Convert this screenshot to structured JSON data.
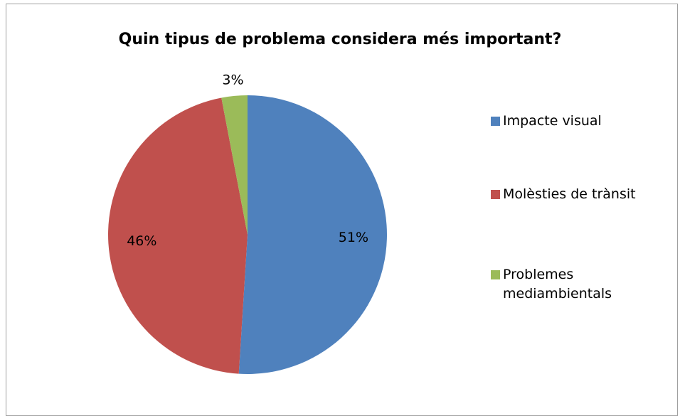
{
  "chart_data": {
    "type": "pie",
    "title": "Quin tipus de problema considera més important?",
    "categories": [
      "Impacte visual",
      "Molèsties de trànsit",
      "Problemes mediambientals"
    ],
    "values": [
      51,
      46,
      3
    ],
    "value_labels": [
      "51%",
      "46%",
      "3%"
    ],
    "colors": [
      "#4f81bd",
      "#c0504d",
      "#9bbb59"
    ],
    "legend": "right"
  }
}
